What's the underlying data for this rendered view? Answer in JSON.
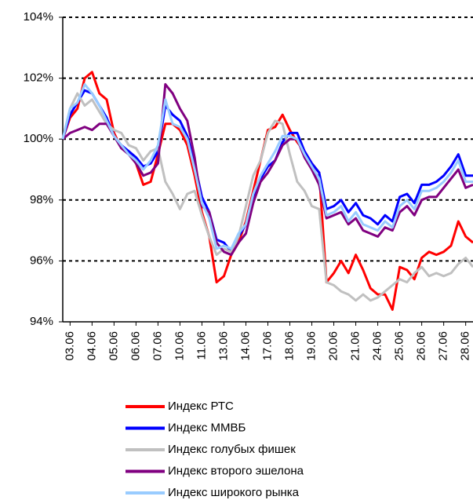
{
  "chart_data": {
    "type": "line",
    "categories": [
      null,
      "03.06",
      null,
      null,
      "04.06",
      null,
      null,
      "05.06",
      null,
      null,
      "06.06",
      null,
      null,
      "07.06",
      null,
      null,
      "10.06",
      null,
      null,
      "11.06",
      null,
      null,
      "13.06",
      null,
      null,
      "14.06",
      null,
      null,
      "17.06",
      null,
      null,
      "18.06",
      null,
      null,
      "19.06",
      null,
      null,
      "20.06",
      null,
      null,
      "21.06",
      null,
      null,
      "24.06",
      null,
      null,
      "25.06",
      null,
      null,
      "26.06",
      null,
      null,
      "27.06",
      null,
      null,
      "28.06",
      null
    ],
    "series": [
      {
        "name": "Индекс РТС",
        "color": "#ff0000",
        "values": [
          100,
          100.7,
          101,
          102,
          102.2,
          101.5,
          101.3,
          100.2,
          99.7,
          99.6,
          99.2,
          98.5,
          98.6,
          99.5,
          100.5,
          100.5,
          100.3,
          99.8,
          98.8,
          97.6,
          96.8,
          95.3,
          95.5,
          96.2,
          96.6,
          97.3,
          98.3,
          99.3,
          100.3,
          100.4,
          100.8,
          100.3,
          99.9,
          99.6,
          99.2,
          98.9,
          95.3,
          95.6,
          96,
          95.6,
          96.2,
          95.7,
          95.1,
          94.9,
          94.9,
          94.4,
          95.8,
          95.7,
          95.4,
          96.1,
          96.3,
          96.2,
          96.3,
          96.5,
          97.3,
          96.8,
          96.6
        ]
      },
      {
        "name": "Индекс ММВБ",
        "color": "#0000ff",
        "values": [
          100,
          100.8,
          101.2,
          101.6,
          101.5,
          101.1,
          100.7,
          100.1,
          99.8,
          99.6,
          99.4,
          99.1,
          99.2,
          99.6,
          101.1,
          100.8,
          100.6,
          100.1,
          99.2,
          98.1,
          97.6,
          96.7,
          96.6,
          96.3,
          96.8,
          97.2,
          98.1,
          98.7,
          99.1,
          99.3,
          99.9,
          100.2,
          100.2,
          99.6,
          99.2,
          98.9,
          97.7,
          97.8,
          98.0,
          97.6,
          97.9,
          97.5,
          97.4,
          97.2,
          97.5,
          97.3,
          98.1,
          98.2,
          97.9,
          98.5,
          98.5,
          98.6,
          98.8,
          99.1,
          99.5,
          98.8,
          98.8
        ]
      },
      {
        "name": "Индекс голубых фишек",
        "color": "#c0c0c0",
        "values": [
          100,
          101,
          101.5,
          101.1,
          101.3,
          100.9,
          100.5,
          100.3,
          100.2,
          99.8,
          99.7,
          99.3,
          99.6,
          99.7,
          98.6,
          98.2,
          97.7,
          98.2,
          98.3,
          97.5,
          96.8,
          96.2,
          96.4,
          96.3,
          96.8,
          97.8,
          98.8,
          99.3,
          100.2,
          100.6,
          100.5,
          99.5,
          98.6,
          98.3,
          97.8,
          97.7,
          95.3,
          95.2,
          95.0,
          94.9,
          94.7,
          94.9,
          94.7,
          94.8,
          95.0,
          95.2,
          95.4,
          95.3,
          95.6,
          95.8,
          95.5,
          95.6,
          95.5,
          95.6,
          95.9,
          96.1,
          95.8
        ]
      },
      {
        "name": "Индекс второго эшелона",
        "color": "#800080",
        "values": [
          100,
          100.2,
          100.3,
          100.4,
          100.3,
          100.5,
          100.5,
          100.1,
          99.7,
          99.5,
          99.2,
          98.8,
          98.9,
          99.2,
          101.8,
          101.5,
          101.0,
          100.6,
          99.4,
          97.8,
          97.6,
          96.6,
          96.3,
          96.2,
          96.6,
          96.9,
          97.9,
          98.6,
          98.9,
          99.3,
          99.8,
          100.0,
          100.0,
          99.4,
          99.0,
          98.5,
          97.4,
          97.5,
          97.6,
          97.2,
          97.4,
          97.0,
          96.9,
          96.8,
          97.1,
          97.0,
          97.6,
          97.8,
          97.5,
          98.0,
          98.1,
          98.1,
          98.4,
          98.7,
          99.0,
          98.4,
          98.5
        ]
      },
      {
        "name": "Индекс широкого рынка",
        "color": "#99ccff",
        "values": [
          100,
          101,
          101.2,
          101.8,
          101.5,
          101.1,
          100.6,
          100.1,
          99.8,
          99.5,
          99.3,
          99.0,
          99.3,
          99.8,
          101.3,
          100.5,
          100.4,
          100.0,
          99.0,
          97.9,
          97.4,
          96.4,
          96.5,
          96.4,
          96.9,
          97.2,
          98.2,
          98.8,
          99.2,
          99.6,
          100.1,
          100.1,
          100.0,
          99.5,
          99.1,
          98.7,
          97.5,
          97.6,
          97.8,
          97.3,
          97.6,
          97.2,
          97.1,
          97.0,
          97.3,
          97.1,
          97.8,
          98.0,
          97.7,
          98.3,
          98.3,
          98.4,
          98.6,
          98.9,
          99.3,
          98.6,
          98.6
        ]
      }
    ],
    "ylim": [
      94,
      104
    ],
    "yticks": [
      {
        "value": 94,
        "label": "94%"
      },
      {
        "value": 96,
        "label": "96%"
      },
      {
        "value": 98,
        "label": "98%"
      },
      {
        "value": 100,
        "label": "100%"
      },
      {
        "value": 102,
        "label": "102%"
      },
      {
        "value": 104,
        "label": "104%"
      }
    ],
    "grid": true
  }
}
